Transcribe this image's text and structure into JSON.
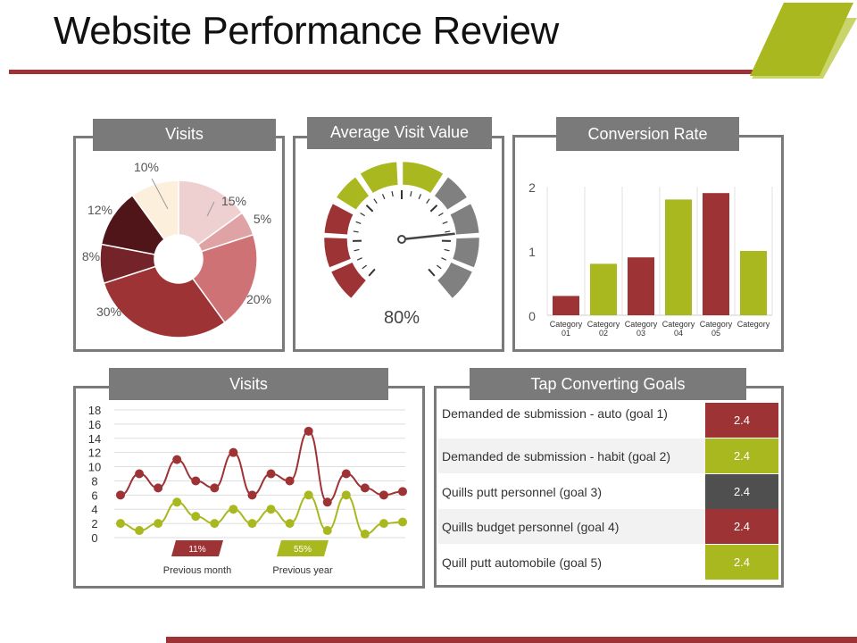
{
  "page": {
    "title": "Website Performance Review",
    "colors": {
      "primary": "#9e3336",
      "accent": "#a9b81f",
      "panel": "#7a7a7a"
    }
  },
  "visits_pie": {
    "title": "Visits"
  },
  "avg_visit": {
    "title": "Average Visit Value",
    "value_label": "80%"
  },
  "conversion": {
    "title": "Conversion Rate"
  },
  "visits_line": {
    "title": "Visits"
  },
  "goals": {
    "title": "Tap Converting Goals",
    "rows": [
      {
        "label": "Demanded de submission - auto (goal 1)",
        "value": "2.4",
        "color": "#9e3336"
      },
      {
        "label": "Demanded de submission - habit (goal 2)",
        "value": "2.4",
        "color": "#a9b81f"
      },
      {
        "label": "Quills putt personnel (goal 3)",
        "value": "2.4",
        "color": "#4f4f4f"
      },
      {
        "label": "Quills budget personnel (goal 4)",
        "value": "2.4",
        "color": "#9e3336"
      },
      {
        "label": "Quill putt automobile (goal 5)",
        "value": "2.4",
        "color": "#a9b81f"
      }
    ]
  },
  "chart_data": [
    {
      "type": "pie",
      "title": "Visits",
      "categories": [
        "15%",
        "5%",
        "20%",
        "30%",
        "8%",
        "12%",
        "10%"
      ],
      "values": [
        15,
        5,
        20,
        30,
        8,
        12,
        10
      ],
      "labels": [
        "15%",
        "5%",
        "20%",
        "30%",
        "8%",
        "12%",
        "10%"
      ],
      "colors": [
        "#efd0d1",
        "#dfa3a5",
        "#cf7275",
        "#9e3336",
        "#742428",
        "#4f1519",
        "#fcf0dd"
      ]
    },
    {
      "type": "gauge",
      "title": "Average Visit Value",
      "value": 80,
      "min": 0,
      "max": 100,
      "value_label": "80%"
    },
    {
      "type": "bar",
      "title": "Conversion Rate",
      "categories": [
        "Category 01",
        "Category 02",
        "Category 03",
        "Category 04",
        "Category 05",
        "Category"
      ],
      "values": [
        0.3,
        0.8,
        0.9,
        1.8,
        1.9,
        1.0
      ],
      "colors": [
        "#9e3336",
        "#a9b81f",
        "#9e3336",
        "#a9b81f",
        "#9e3336",
        "#a9b81f"
      ],
      "ylim": [
        0,
        2
      ],
      "yticks": [
        "0",
        "1",
        "2"
      ]
    },
    {
      "type": "line",
      "title": "Visits",
      "x": [
        1,
        2,
        3,
        4,
        5,
        6,
        7,
        8,
        9,
        10,
        11,
        12,
        13,
        14,
        15,
        16
      ],
      "ylim": [
        0,
        18
      ],
      "yticks": [
        "0",
        "2",
        "4",
        "6",
        "8",
        "10",
        "12",
        "14",
        "16",
        "18"
      ],
      "series": [
        {
          "name": "Previous month",
          "color": "#9e3336",
          "values": [
            6,
            9,
            7,
            11,
            8,
            7,
            12,
            6,
            9,
            8,
            15,
            5,
            9,
            7,
            6,
            6.5
          ]
        },
        {
          "name": "Previous year",
          "color": "#a9b81f",
          "values": [
            2,
            1,
            2,
            5,
            3,
            2,
            4,
            2,
            4,
            2,
            6,
            1,
            6,
            0.5,
            2,
            2.2
          ]
        }
      ],
      "legend": [
        {
          "name": "Previous month",
          "badge": "11%",
          "color": "#9e3336"
        },
        {
          "name": "Previous year",
          "badge": "55%",
          "color": "#a9b81f"
        }
      ]
    }
  ]
}
